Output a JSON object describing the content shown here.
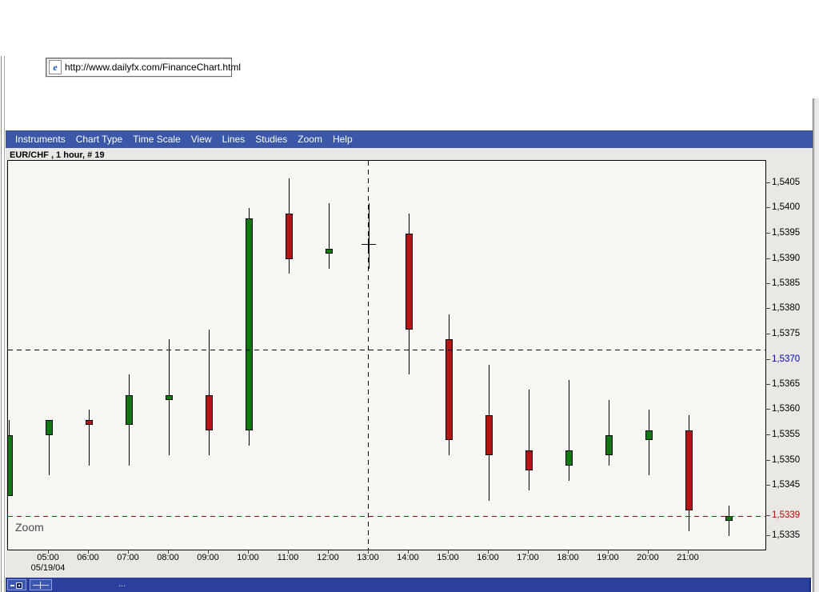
{
  "browser": {
    "address_bar": {
      "url": "http://www.dailyfx.com/FinanceChart.html",
      "icon": "ie-page-icon"
    }
  },
  "app": {
    "menu_bar": {
      "items": [
        "Instruments",
        "Chart Type",
        "Time Scale",
        "View",
        "Lines",
        "Studies",
        "Zoom",
        "Help"
      ]
    },
    "chart_title": "EUR/CHF , 1 hour, # 19",
    "mode_label": "Zoom",
    "status_bar": {
      "text": "...",
      "buttons": [
        "restore-window-icon",
        "crosshair-tool-icon"
      ]
    }
  },
  "colors": {
    "menu_bar_bg": "#3a57a8",
    "status_bar_bg": "#2B3F9E",
    "chart_outer_bg": "#EAE8E4",
    "plot_bg": "#F8F7F4",
    "up_candle": "#127712",
    "down_candle": "#b51414",
    "crosshair_label": "#0000bb",
    "last_price_label": "#bb0000"
  },
  "chart_data": {
    "type": "candlestick",
    "symbol": "EUR/CHF",
    "interval": "1 hour",
    "bar_count": 19,
    "date_label": "05/19/04",
    "ylim": [
      1.5333,
      1.5407
    ],
    "grid": false,
    "x_tick_labels": [
      "05:00",
      "06:00",
      "07:00",
      "08:00",
      "09:00",
      "10:00",
      "11:00",
      "12:00",
      "13:00",
      "14:00",
      "15:00",
      "16:00",
      "17:00",
      "18:00",
      "19:00",
      "20:00",
      "21:00"
    ],
    "y_ticks": [
      {
        "label": "1,5405",
        "price": 1.5405,
        "kind": "normal"
      },
      {
        "label": "1,5400",
        "price": 1.54,
        "kind": "normal"
      },
      {
        "label": "1,5395",
        "price": 1.5395,
        "kind": "normal"
      },
      {
        "label": "1,5390",
        "price": 1.539,
        "kind": "normal"
      },
      {
        "label": "1,5385",
        "price": 1.5385,
        "kind": "normal"
      },
      {
        "label": "1,5380",
        "price": 1.538,
        "kind": "normal"
      },
      {
        "label": "1,5375",
        "price": 1.5375,
        "kind": "normal"
      },
      {
        "label": "1,5370",
        "price": 1.537,
        "kind": "crosshair"
      },
      {
        "label": "1,5365",
        "price": 1.5365,
        "kind": "normal"
      },
      {
        "label": "1,5360",
        "price": 1.536,
        "kind": "normal"
      },
      {
        "label": "1,5355",
        "price": 1.5355,
        "kind": "normal"
      },
      {
        "label": "1,5350",
        "price": 1.535,
        "kind": "normal"
      },
      {
        "label": "1,5345",
        "price": 1.5345,
        "kind": "normal"
      },
      {
        "label": "1,5339",
        "price": 1.5339,
        "kind": "last"
      },
      {
        "label": "1,5335",
        "price": 1.5335,
        "kind": "normal"
      }
    ],
    "candles": [
      {
        "time": "04:00",
        "open": 1.5343,
        "high": 1.5358,
        "low": 1.5343,
        "close": 1.5355,
        "dir": "up"
      },
      {
        "time": "05:00",
        "open": 1.5355,
        "high": 1.5358,
        "low": 1.5347,
        "close": 1.5358,
        "dir": "up"
      },
      {
        "time": "06:00",
        "open": 1.5358,
        "high": 1.536,
        "low": 1.5349,
        "close": 1.5357,
        "dir": "down"
      },
      {
        "time": "07:00",
        "open": 1.5357,
        "high": 1.5367,
        "low": 1.5349,
        "close": 1.5363,
        "dir": "up"
      },
      {
        "time": "08:00",
        "open": 1.5362,
        "high": 1.5374,
        "low": 1.5351,
        "close": 1.5363,
        "dir": "up"
      },
      {
        "time": "09:00",
        "open": 1.5363,
        "high": 1.5376,
        "low": 1.5351,
        "close": 1.5356,
        "dir": "down"
      },
      {
        "time": "10:00",
        "open": 1.5356,
        "high": 1.54,
        "low": 1.5353,
        "close": 1.5398,
        "dir": "up"
      },
      {
        "time": "11:00",
        "open": 1.5399,
        "high": 1.5406,
        "low": 1.5387,
        "close": 1.539,
        "dir": "down"
      },
      {
        "time": "12:00",
        "open": 1.5391,
        "high": 1.5401,
        "low": 1.5388,
        "close": 1.5392,
        "dir": "up"
      },
      {
        "time": "13:00",
        "open": 1.5393,
        "high": 1.5401,
        "low": 1.5388,
        "close": 1.5393,
        "dir": "flat"
      },
      {
        "time": "14:00",
        "open": 1.5395,
        "high": 1.5399,
        "low": 1.5367,
        "close": 1.5376,
        "dir": "down"
      },
      {
        "time": "15:00",
        "open": 1.5374,
        "high": 1.5379,
        "low": 1.5351,
        "close": 1.5354,
        "dir": "down"
      },
      {
        "time": "16:00",
        "open": 1.5359,
        "high": 1.5369,
        "low": 1.5342,
        "close": 1.5351,
        "dir": "down"
      },
      {
        "time": "17:00",
        "open": 1.5352,
        "high": 1.5364,
        "low": 1.5344,
        "close": 1.5348,
        "dir": "down"
      },
      {
        "time": "18:00",
        "open": 1.5349,
        "high": 1.5366,
        "low": 1.5346,
        "close": 1.5352,
        "dir": "up"
      },
      {
        "time": "19:00",
        "open": 1.5351,
        "high": 1.5362,
        "low": 1.5349,
        "close": 1.5355,
        "dir": "up"
      },
      {
        "time": "20:00",
        "open": 1.5354,
        "high": 1.536,
        "low": 1.5347,
        "close": 1.5356,
        "dir": "up"
      },
      {
        "time": "21:00",
        "open": 1.5356,
        "high": 1.5359,
        "low": 1.5336,
        "close": 1.534,
        "dir": "down"
      },
      {
        "time": "22:00",
        "open": 1.5338,
        "high": 1.5341,
        "low": 1.5335,
        "close": 1.5339,
        "dir": "up"
      }
    ],
    "crosshair": {
      "time": "13:00",
      "price": 1.5372,
      "cursor_price": 1.5393,
      "highlighted_y_label": "1,5370"
    },
    "last_price": 1.5339
  }
}
